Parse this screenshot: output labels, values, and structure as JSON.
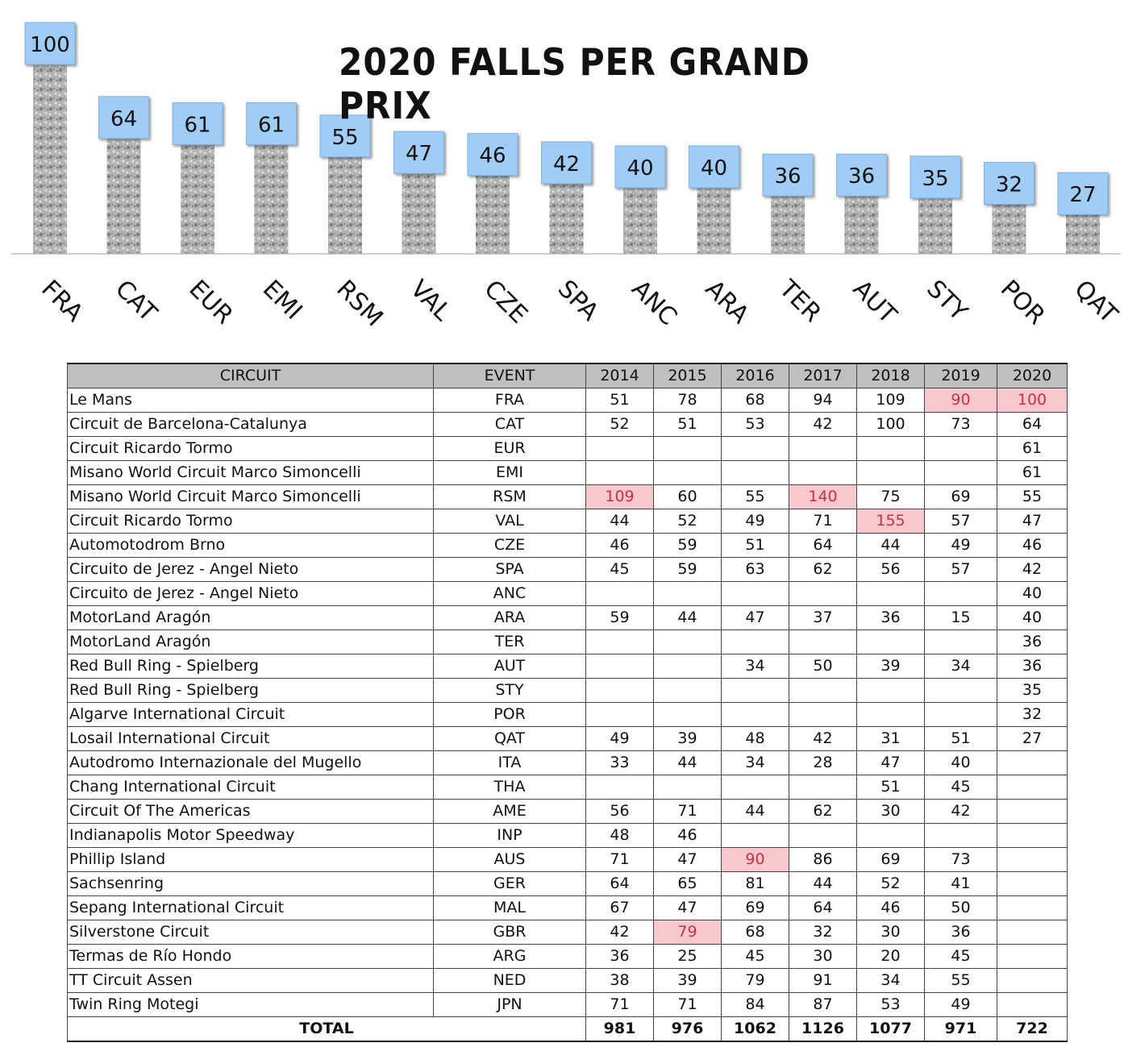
{
  "chart_data": {
    "type": "bar",
    "title": "2020 FALLS PER GRAND PRIX",
    "categories": [
      "FRA",
      "CAT",
      "EUR",
      "EMI",
      "RSM",
      "VAL",
      "CZE",
      "SPA",
      "ANC",
      "ARA",
      "TER",
      "AUT",
      "STY",
      "POR",
      "QAT"
    ],
    "values": [
      100,
      64,
      61,
      61,
      55,
      47,
      46,
      42,
      40,
      40,
      36,
      36,
      35,
      32,
      27
    ],
    "ylim": [
      0,
      100
    ],
    "grid": false,
    "label_color": "#9fcdf5",
    "bar_color": "#9a9a9a"
  },
  "table": {
    "headers": [
      "CIRCUIT",
      "EVENT",
      "2014",
      "2015",
      "2016",
      "2017",
      "2018",
      "2019",
      "2020"
    ],
    "rows": [
      [
        "Le Mans",
        "FRA",
        "51",
        "78",
        "68",
        "94",
        "109",
        "90",
        "100"
      ],
      [
        "Circuit de Barcelona-Catalunya",
        "CAT",
        "52",
        "51",
        "53",
        "42",
        "100",
        "73",
        "64"
      ],
      [
        "Circuit Ricardo Tormo",
        "EUR",
        "",
        "",
        "",
        "",
        "",
        "",
        "61"
      ],
      [
        "Misano World Circuit Marco Simoncelli",
        "EMI",
        "",
        "",
        "",
        "",
        "",
        "",
        "61"
      ],
      [
        "Misano World Circuit Marco Simoncelli",
        "RSM",
        "109",
        "60",
        "55",
        "140",
        "75",
        "69",
        "55"
      ],
      [
        "Circuit Ricardo Tormo",
        "VAL",
        "44",
        "52",
        "49",
        "71",
        "155",
        "57",
        "47"
      ],
      [
        "Automotodrom Brno",
        "CZE",
        "46",
        "59",
        "51",
        "64",
        "44",
        "49",
        "46"
      ],
      [
        "Circuito de Jerez - Angel Nieto",
        "SPA",
        "45",
        "59",
        "63",
        "62",
        "56",
        "57",
        "42"
      ],
      [
        "Circuito de Jerez - Angel Nieto",
        "ANC",
        "",
        "",
        "",
        "",
        "",
        "",
        "40"
      ],
      [
        "MotorLand Aragón",
        "ARA",
        "59",
        "44",
        "47",
        "37",
        "36",
        "15",
        "40"
      ],
      [
        "MotorLand Aragón",
        "TER",
        "",
        "",
        "",
        "",
        "",
        "",
        "36"
      ],
      [
        "Red Bull Ring - Spielberg",
        "AUT",
        "",
        "",
        "34",
        "50",
        "39",
        "34",
        "36"
      ],
      [
        "Red Bull Ring - Spielberg",
        "STY",
        "",
        "",
        "",
        "",
        "",
        "",
        "35"
      ],
      [
        "Algarve International Circuit",
        "POR",
        "",
        "",
        "",
        "",
        "",
        "",
        "32"
      ],
      [
        "Losail International Circuit",
        "QAT",
        "49",
        "39",
        "48",
        "42",
        "31",
        "51",
        "27"
      ],
      [
        "Autodromo Internazionale del Mugello",
        "ITA",
        "33",
        "44",
        "34",
        "28",
        "47",
        "40",
        ""
      ],
      [
        "Chang International Circuit",
        "THA",
        "",
        "",
        "",
        "",
        "51",
        "45",
        ""
      ],
      [
        "Circuit Of The Americas",
        "AME",
        "56",
        "71",
        "44",
        "62",
        "30",
        "42",
        ""
      ],
      [
        "Indianapolis Motor Speedway",
        "INP",
        "48",
        "46",
        "",
        "",
        "",
        "",
        ""
      ],
      [
        "Phillip Island",
        "AUS",
        "71",
        "47",
        "90",
        "86",
        "69",
        "73",
        ""
      ],
      [
        "Sachsenring",
        "GER",
        "64",
        "65",
        "81",
        "44",
        "52",
        "41",
        ""
      ],
      [
        "Sepang International Circuit",
        "MAL",
        "67",
        "47",
        "69",
        "64",
        "46",
        "50",
        ""
      ],
      [
        "Silverstone Circuit",
        "GBR",
        "42",
        "79",
        "68",
        "32",
        "30",
        "36",
        ""
      ],
      [
        "Termas de Río Hondo",
        "ARG",
        "36",
        "25",
        "45",
        "30",
        "20",
        "45",
        ""
      ],
      [
        "TT Circuit Assen",
        "NED",
        "38",
        "39",
        "79",
        "91",
        "34",
        "55",
        ""
      ],
      [
        "Twin Ring Motegi",
        "JPN",
        "71",
        "71",
        "84",
        "87",
        "53",
        "49",
        ""
      ]
    ],
    "highlights": [
      [
        0,
        7
      ],
      [
        0,
        8
      ],
      [
        4,
        2
      ],
      [
        4,
        5
      ],
      [
        5,
        6
      ],
      [
        19,
        4
      ],
      [
        22,
        3
      ]
    ],
    "highlight_color": "#f9c8cc",
    "total_label": "TOTAL",
    "totals": [
      "981",
      "976",
      "1062",
      "1126",
      "1077",
      "971",
      "722"
    ]
  }
}
